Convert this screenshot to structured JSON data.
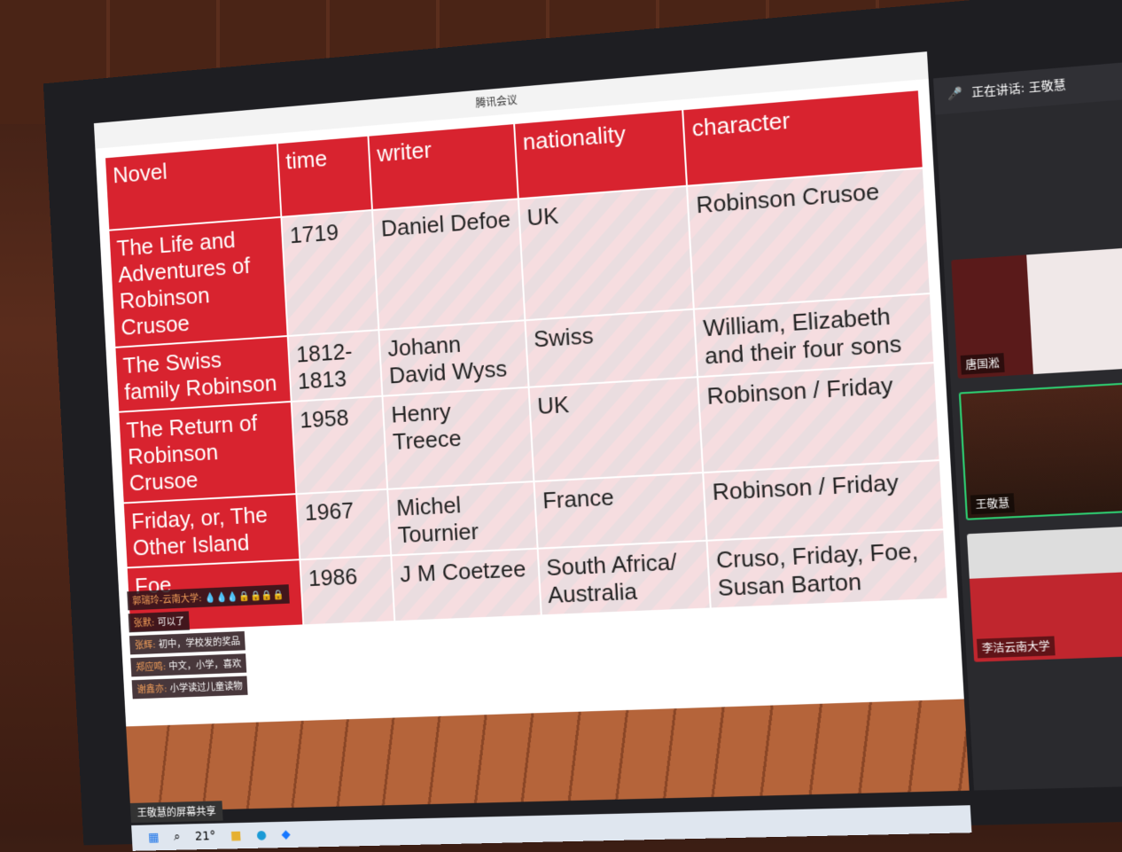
{
  "window": {
    "title": "腾讯会议"
  },
  "speaking": {
    "label": "正在讲话: 王敬慧"
  },
  "table": {
    "headers": [
      "Novel",
      "time",
      "writer",
      "nationality",
      "character"
    ],
    "rows": [
      [
        "The Life and Adventures of Robinson Crusoe",
        "1719",
        "Daniel Defoe",
        "UK",
        "Robinson Crusoe"
      ],
      [
        "The Swiss family Robinson",
        "1812-1813",
        "Johann David Wyss",
        "Swiss",
        "William, Elizabeth and their four sons"
      ],
      [
        "The Return of Robinson Crusoe",
        "1958",
        "Henry Treece",
        "UK",
        "Robinson / Friday"
      ],
      [
        "Friday, or, The Other Island",
        "1967",
        "Michel Tournier",
        "France",
        "Robinson / Friday"
      ],
      [
        "Foe",
        "1986",
        "J M Coetzee",
        "South Africa/ Australia",
        "Cruso, Friday, Foe, Susan Barton"
      ]
    ]
  },
  "chat": [
    {
      "name": "郭瑞玲-云南大学:",
      "text": "💧💧💧🔒🔒🔒🔒"
    },
    {
      "name": "张默:",
      "text": "可以了"
    },
    {
      "name": "张辉:",
      "text": "初中，学校发的奖品"
    },
    {
      "name": "郑应鸣:",
      "text": "中文，小学，喜欢"
    },
    {
      "name": "谢鑫亦:",
      "text": "小学读过儿童读物"
    }
  ],
  "participants": [
    {
      "name": "唐国淞"
    },
    {
      "name": "王敬慧"
    },
    {
      "name": "李洁云南大学"
    }
  ],
  "share_label": "王敬慧的屏幕共享",
  "taskbar": {
    "weather": "21°"
  },
  "colors": {
    "header": "#d8232f",
    "active_border": "#2ecc71"
  }
}
